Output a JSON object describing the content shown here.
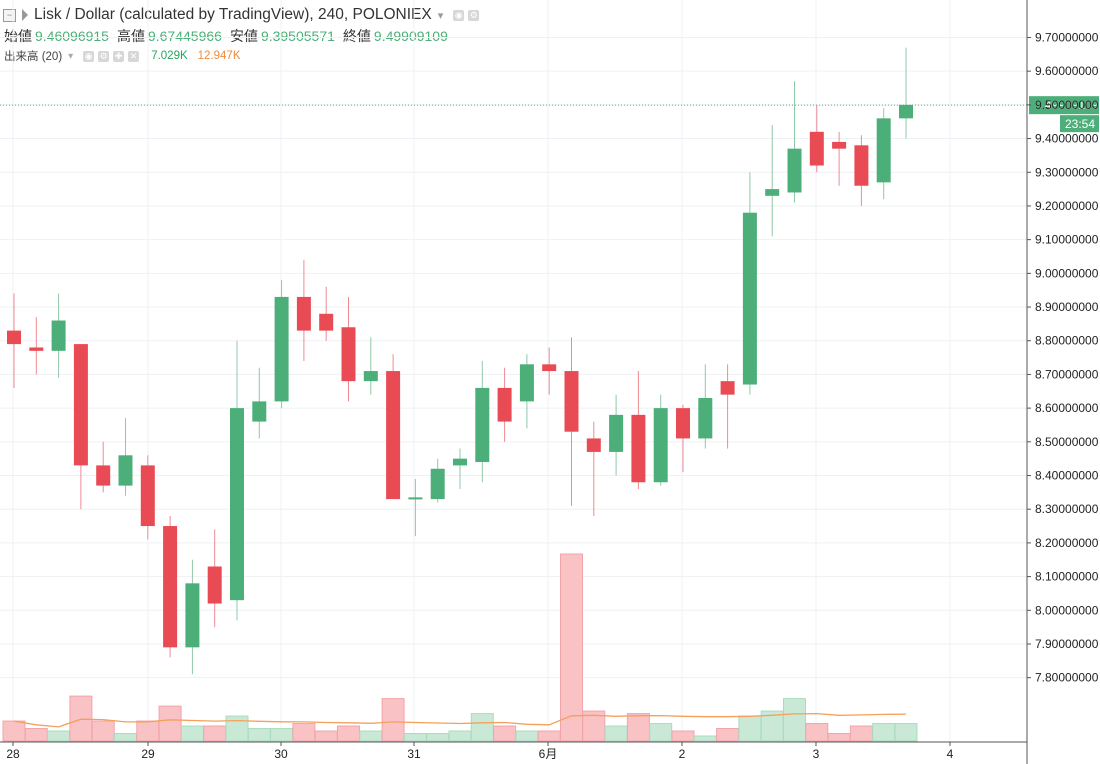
{
  "legend": {
    "symbol_title": "Lisk / Dollar (calculated by TradingView), 240, POLONIEX",
    "ohlc": [
      {
        "label": "始値",
        "value": "9.46096915"
      },
      {
        "label": "高値",
        "value": "9.67445966"
      },
      {
        "label": "安値",
        "value": "9.39505571"
      },
      {
        "label": "終値",
        "value": "9.49909109"
      }
    ],
    "volume": {
      "label": "出来高 (20)",
      "value": "7.029K",
      "ma_value": "12.947K"
    }
  },
  "colors": {
    "up": "#4caf79",
    "down": "#e94b55",
    "volume_up": "#c9e9d6",
    "volume_down": "#f9c3c6",
    "volume_ma": "#f5a05a",
    "last_price": "#4caf79",
    "grid": "#eef1f5"
  },
  "price_axis": {
    "ticks": [
      "9.70000000",
      "9.60000000",
      "9.50000000",
      "9.40000000",
      "9.30000000",
      "9.20000000",
      "9.10000000",
      "9.00000000",
      "8.90000000",
      "8.80000000",
      "8.70000000",
      "8.60000000",
      "8.50000000",
      "8.40000000",
      "8.30000000",
      "8.20000000",
      "8.10000000",
      "8.00000000",
      "7.90000000",
      "7.80000000"
    ],
    "last_price": "9.49909109",
    "countdown": "23:54"
  },
  "time_axis": {
    "ticks": [
      "28",
      "29",
      "30",
      "31",
      "6月",
      "2",
      "3",
      "4"
    ]
  },
  "chart_data": {
    "type": "candlestick",
    "title": "Lisk / Dollar (calculated by TradingView), 240, POLONIEX",
    "interval": "240",
    "x_ticks": [
      "28",
      "29",
      "30",
      "31",
      "6月",
      "2",
      "3",
      "4"
    ],
    "ylim": [
      7.71,
      9.74
    ],
    "grid": true,
    "volume_ma_period": 20,
    "candles": [
      {
        "o": 8.83,
        "h": 8.94,
        "l": 8.66,
        "c": 8.79,
        "v": 8
      },
      {
        "o": 8.78,
        "h": 8.87,
        "l": 8.7,
        "c": 8.77,
        "v": 5
      },
      {
        "o": 8.77,
        "h": 8.94,
        "l": 8.69,
        "c": 8.86,
        "v": 4
      },
      {
        "o": 8.79,
        "h": 8.79,
        "l": 8.3,
        "c": 8.43,
        "v": 18
      },
      {
        "o": 8.43,
        "h": 8.5,
        "l": 8.35,
        "c": 8.37,
        "v": 8
      },
      {
        "o": 8.37,
        "h": 8.57,
        "l": 8.34,
        "c": 8.46,
        "v": 3
      },
      {
        "o": 8.43,
        "h": 8.46,
        "l": 8.21,
        "c": 8.25,
        "v": 8
      },
      {
        "o": 8.25,
        "h": 8.28,
        "l": 7.86,
        "c": 7.89,
        "v": 14
      },
      {
        "o": 7.89,
        "h": 8.15,
        "l": 7.81,
        "c": 8.08,
        "v": 6
      },
      {
        "o": 8.13,
        "h": 8.24,
        "l": 7.95,
        "c": 8.02,
        "v": 6
      },
      {
        "o": 8.03,
        "h": 8.8,
        "l": 7.97,
        "c": 8.6,
        "v": 10
      },
      {
        "o": 8.56,
        "h": 8.72,
        "l": 8.51,
        "c": 8.62,
        "v": 5
      },
      {
        "o": 8.62,
        "h": 8.98,
        "l": 8.6,
        "c": 8.93,
        "v": 5
      },
      {
        "o": 8.93,
        "h": 9.04,
        "l": 8.74,
        "c": 8.83,
        "v": 7
      },
      {
        "o": 8.88,
        "h": 8.96,
        "l": 8.8,
        "c": 8.83,
        "v": 4
      },
      {
        "o": 8.84,
        "h": 8.93,
        "l": 8.62,
        "c": 8.68,
        "v": 6
      },
      {
        "o": 8.68,
        "h": 8.81,
        "l": 8.64,
        "c": 8.71,
        "v": 4
      },
      {
        "o": 8.71,
        "h": 8.76,
        "l": 8.33,
        "c": 8.33,
        "v": 17
      },
      {
        "o": 8.335,
        "h": 8.39,
        "l": 8.22,
        "c": 8.335,
        "v": 3
      },
      {
        "o": 8.33,
        "h": 8.45,
        "l": 8.32,
        "c": 8.42,
        "v": 3
      },
      {
        "o": 8.43,
        "h": 8.48,
        "l": 8.36,
        "c": 8.45,
        "v": 4
      },
      {
        "o": 8.44,
        "h": 8.74,
        "l": 8.38,
        "c": 8.66,
        "v": 11
      },
      {
        "o": 8.66,
        "h": 8.72,
        "l": 8.5,
        "c": 8.56,
        "v": 6
      },
      {
        "o": 8.62,
        "h": 8.76,
        "l": 8.54,
        "c": 8.73,
        "v": 4
      },
      {
        "o": 8.73,
        "h": 8.78,
        "l": 8.64,
        "c": 8.71,
        "v": 4
      },
      {
        "o": 8.71,
        "h": 8.81,
        "l": 8.31,
        "c": 8.53,
        "v": 75
      },
      {
        "o": 8.51,
        "h": 8.56,
        "l": 8.28,
        "c": 8.47,
        "v": 12
      },
      {
        "o": 8.47,
        "h": 8.64,
        "l": 8.4,
        "c": 8.58,
        "v": 6
      },
      {
        "o": 8.58,
        "h": 8.71,
        "l": 8.36,
        "c": 8.38,
        "v": 11
      },
      {
        "o": 8.38,
        "h": 8.64,
        "l": 8.37,
        "c": 8.6,
        "v": 7
      },
      {
        "o": 8.6,
        "h": 8.61,
        "l": 8.41,
        "c": 8.51,
        "v": 4
      },
      {
        "o": 8.51,
        "h": 8.73,
        "l": 8.48,
        "c": 8.63,
        "v": 2
      },
      {
        "o": 8.68,
        "h": 8.73,
        "l": 8.48,
        "c": 8.64,
        "v": 5
      },
      {
        "o": 8.67,
        "h": 9.3,
        "l": 8.64,
        "c": 9.18,
        "v": 10
      },
      {
        "o": 9.23,
        "h": 9.44,
        "l": 9.11,
        "c": 9.25,
        "v": 12
      },
      {
        "o": 9.24,
        "h": 9.57,
        "l": 9.21,
        "c": 9.37,
        "v": 17
      },
      {
        "o": 9.42,
        "h": 9.5,
        "l": 9.3,
        "c": 9.32,
        "v": 7
      },
      {
        "o": 9.39,
        "h": 9.42,
        "l": 9.26,
        "c": 9.37,
        "v": 3
      },
      {
        "o": 9.38,
        "h": 9.41,
        "l": 9.2,
        "c": 9.26,
        "v": 6
      },
      {
        "o": 9.27,
        "h": 9.49,
        "l": 9.22,
        "c": 9.46,
        "v": 7
      },
      {
        "o": 9.46,
        "h": 9.67,
        "l": 9.4,
        "c": 9.5,
        "v": 7
      }
    ]
  }
}
